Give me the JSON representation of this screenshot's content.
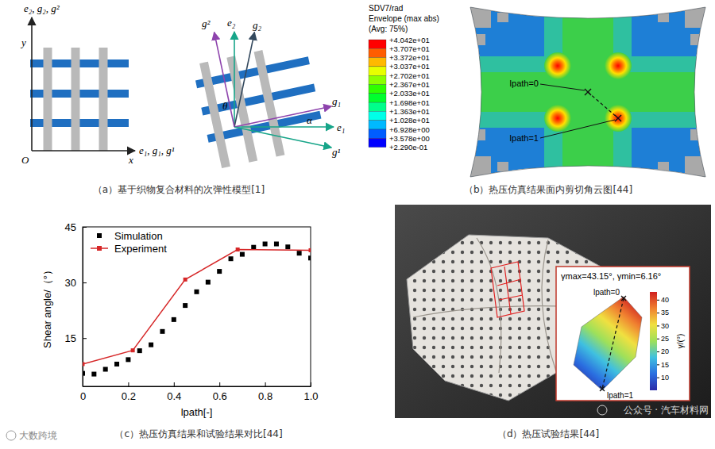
{
  "panel_a": {
    "caption": "（a）基于织物复合材料的次弹性模型[1]",
    "left_axes": {
      "top_label": "e₂, g₂, g²",
      "right_label": "e₁, g₁, g¹",
      "y_label": "y",
      "x_label": "x",
      "origin": "O"
    },
    "right_vectors": {
      "g_sup2": "g²",
      "e2": "e₂",
      "g2": "g₂",
      "g1": "g₁",
      "e1": "e₁",
      "g_sup1": "g¹",
      "theta": "θ",
      "alpha": "α"
    }
  },
  "panel_b": {
    "caption": "（b）热压仿真结果面内剪切角云图[44]",
    "legend_title": [
      "SDV7/rad",
      "Envelope (max abs)",
      "(Avg: 75%)"
    ],
    "legend_labels": [
      "+4.042e+01",
      "+3.707e+01",
      "+3.372e+01",
      "+3.037e+01",
      "+2.702e+01",
      "+2.367e+01",
      "+2.033e+01",
      "+1.698e+01",
      "+1.363e+01",
      "+1.028e+01",
      "+6.928e+00",
      "+3.578e+00",
      "+2.290e-01"
    ],
    "path_start": "lpath=0",
    "path_end": "lpath=1"
  },
  "chart_data": {
    "type": "line",
    "caption": "（c）热压仿真结果和试验结果对比[44]",
    "x_label": "lpath[-]",
    "y_label": "Shear angle/（°）",
    "xlim": [
      0,
      1
    ],
    "xticks": [
      0,
      0.2,
      0.4,
      0.6,
      0.8,
      {
        "value": 1,
        "label": "1.0"
      }
    ],
    "ylim": [
      2,
      45
    ],
    "yticks": [
      15,
      30,
      45
    ],
    "grid": false,
    "legend": "upper left",
    "series": [
      {
        "name": "Simulation",
        "type": "scatter",
        "marker": "square",
        "color": "#000000",
        "x": [
          0,
          0.05,
          0.1,
          0.15,
          0.2,
          0.25,
          0.3,
          0.35,
          0.4,
          0.45,
          0.5,
          0.55,
          0.6,
          0.65,
          0.7,
          0.75,
          0.8,
          0.85,
          0.9,
          0.95,
          1
        ],
        "values": [
          5.5,
          5.3,
          6.6,
          8.0,
          9.2,
          11.6,
          13.2,
          16.8,
          20.0,
          23.8,
          27.5,
          30.1,
          33.0,
          36.4,
          37.6,
          39.5,
          40.4,
          40.4,
          39.6,
          37.9,
          36.6
        ]
      },
      {
        "name": "Experiment",
        "type": "line",
        "marker": "square",
        "color": "#d62728",
        "x": [
          0,
          0.22,
          0.45,
          0.68,
          1
        ],
        "values": [
          8.0,
          11.7,
          30.8,
          38.9,
          38.7
        ]
      }
    ]
  },
  "panel_d": {
    "caption": "（d）热压试验结果[44]",
    "inset_title": "γmax=43.15°, γmin=6.16°",
    "path_start": "lpath=0",
    "path_end": "lpath=1",
    "colorbar_label": "γ/(°)",
    "colorbar_range": [
      5,
      43
    ],
    "colorbar_ticks": [
      10,
      15,
      20,
      25,
      30,
      35,
      40
    ]
  },
  "watermarks": [
    "大数跨境",
    "公众号 · 汽车材料网"
  ]
}
